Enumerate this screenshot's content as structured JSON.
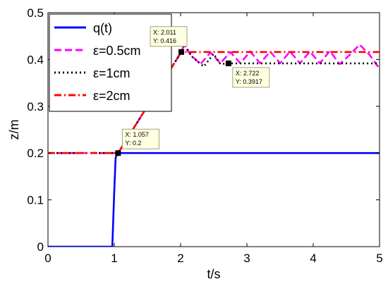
{
  "chart_data": {
    "type": "line",
    "xlabel": "t/s",
    "ylabel": "z/m",
    "xlim": [
      0,
      5
    ],
    "ylim": [
      0,
      0.5
    ],
    "xticks": [
      0,
      1,
      2,
      3,
      4,
      5
    ],
    "yticks": [
      0,
      0.1,
      0.2,
      0.3,
      0.4,
      0.5
    ],
    "xtick_labels": [
      "0",
      "1",
      "2",
      "3",
      "4",
      "5"
    ],
    "ytick_labels": [
      "0",
      "0.1",
      "0.2",
      "0.3",
      "0.4",
      "0.5"
    ],
    "grid": false,
    "legend_position": "top-left",
    "series": [
      {
        "name": "q(t)",
        "color": "#0000ff",
        "dash": "solid",
        "x": [
          0,
          0.97,
          1.0,
          1.02,
          1.05,
          5.0
        ],
        "y": [
          0,
          0,
          0.12,
          0.19,
          0.2,
          0.2
        ]
      },
      {
        "name": "ε=0.5cm",
        "color": "#ff00ff",
        "dash": "dash",
        "x": [
          0,
          1.057,
          2.011,
          2.05,
          2.15,
          2.3,
          2.45,
          2.6,
          2.75,
          2.9,
          3.05,
          3.2,
          3.35,
          3.5,
          3.65,
          3.8,
          3.95,
          4.1,
          4.25,
          4.4,
          4.55,
          4.7,
          4.85,
          5.0
        ],
        "y": [
          0.2,
          0.2,
          0.416,
          0.43,
          0.41,
          0.39,
          0.415,
          0.392,
          0.416,
          0.392,
          0.417,
          0.392,
          0.417,
          0.392,
          0.417,
          0.392,
          0.417,
          0.392,
          0.418,
          0.39,
          0.41,
          0.432,
          0.41,
          0.38
        ]
      },
      {
        "name": "ε=1cm",
        "color": "#000000",
        "dash": "dot",
        "x": [
          0,
          1.057,
          2.011,
          2.06,
          2.18,
          2.35,
          2.5,
          2.6,
          2.722,
          5.0
        ],
        "y": [
          0.2,
          0.2,
          0.416,
          0.432,
          0.405,
          0.385,
          0.412,
          0.39,
          0.3917,
          0.3917
        ]
      },
      {
        "name": "ε=2cm",
        "color": "#ff0000",
        "dash": "dashdot",
        "x": [
          0,
          1.057,
          2.011,
          5.0
        ],
        "y": [
          0.2,
          0.2,
          0.416,
          0.416
        ]
      }
    ],
    "annotations": [
      {
        "x": 1.057,
        "y": 0.2,
        "line1": "X: 1.057",
        "line2": "Y: 0.2",
        "box": "above-right"
      },
      {
        "x": 2.011,
        "y": 0.416,
        "line1": "X: 2.011",
        "line2": "Y: 0.416",
        "box": "above-left"
      },
      {
        "x": 2.722,
        "y": 0.3917,
        "line1": "X: 2.722",
        "line2": "Y: 0.3917",
        "box": "below-right"
      }
    ]
  }
}
